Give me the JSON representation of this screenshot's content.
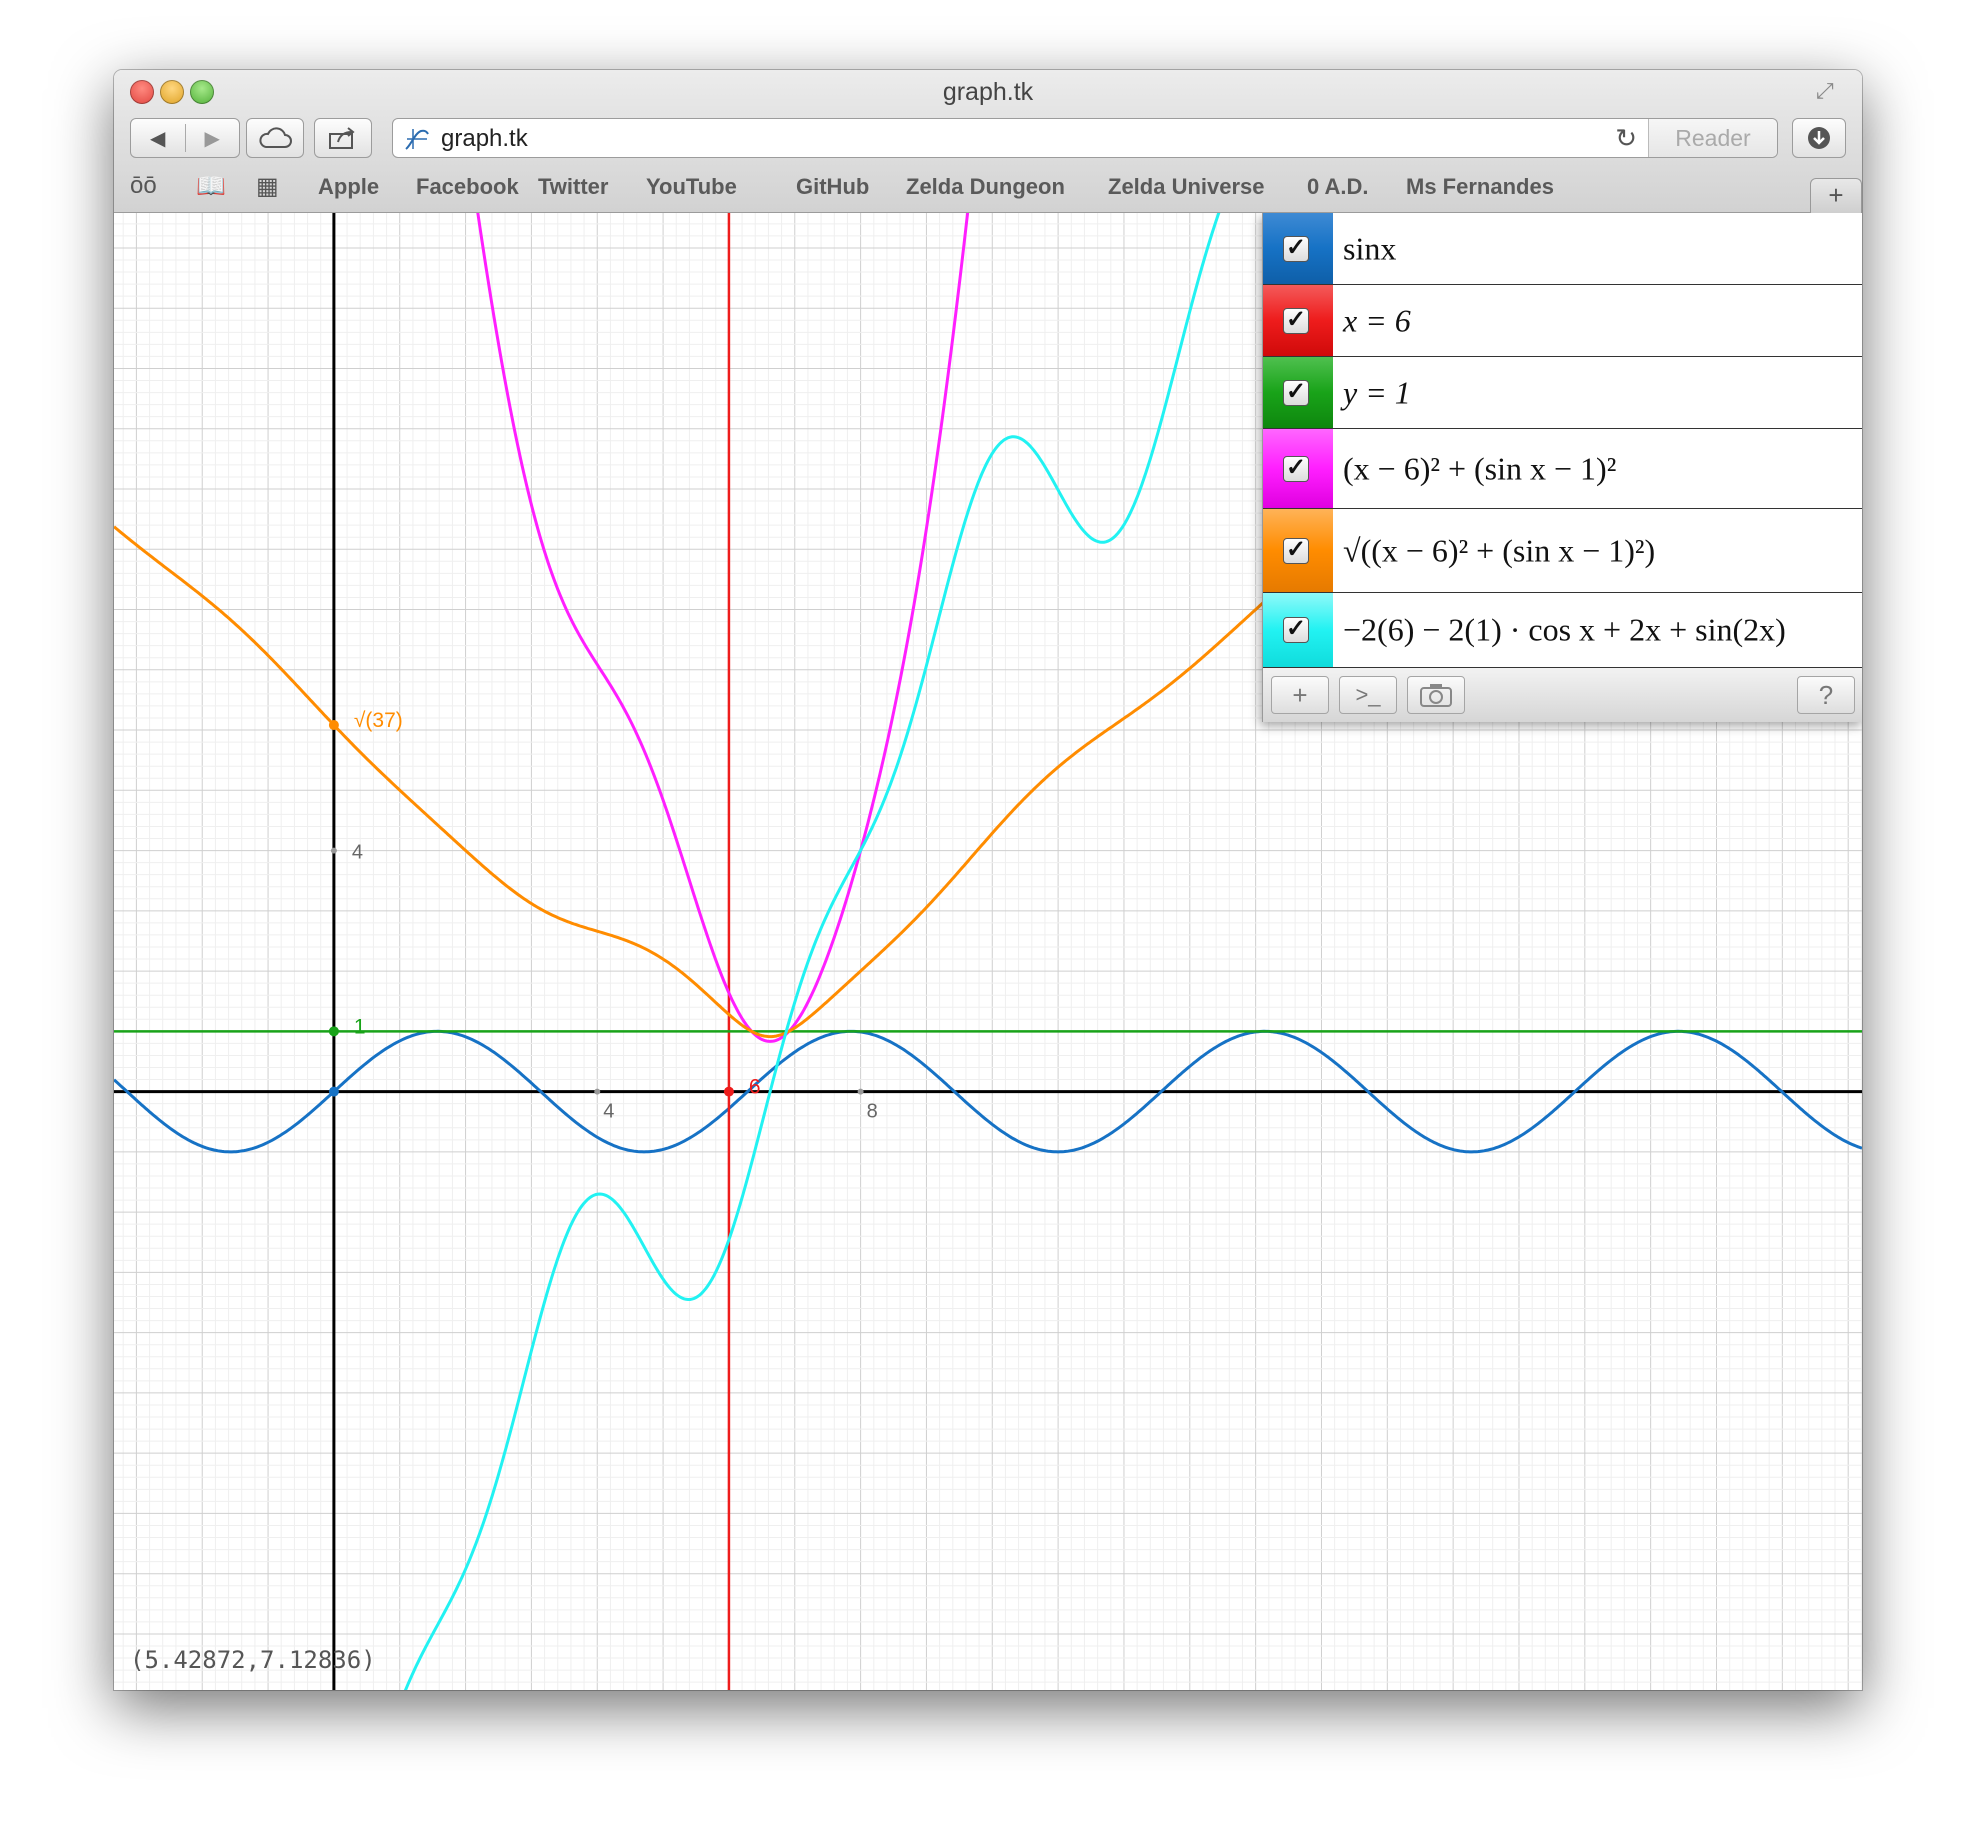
{
  "window": {
    "title": "graph.tk"
  },
  "toolbar": {
    "url": "graph.tk",
    "reader_label": "Reader"
  },
  "bookmarks": [
    "Apple",
    "Facebook",
    "Twitter",
    "YouTube",
    "GitHub",
    "Zelda Dungeon",
    "Zelda Universe",
    "0 A.D.",
    "Ms Fernandes"
  ],
  "bookmark_add": "+",
  "equations": [
    {
      "label": "sinx",
      "color": "#1672c5",
      "checked": true
    },
    {
      "label": "x = 6",
      "color": "#ee1c1c",
      "checked": true
    },
    {
      "label": "y = 1",
      "color": "#19a319",
      "checked": true
    },
    {
      "label": "(x − 6)² + (sin x − 1)²",
      "color": "#ff1fff",
      "checked": true
    },
    {
      "label": "√((x − 6)² + (sin x − 1)²)",
      "color": "#ff8c00",
      "checked": true
    },
    {
      "label": "−2(6) − 2(1) · cos x + 2x + sin(2x)",
      "color": "#22f2f2",
      "checked": true
    }
  ],
  "panel_buttons": {
    "add": "+",
    "console": ">_",
    "camera": "camera-icon",
    "help": "?"
  },
  "cursor_readout": "(5.42872,7.12836)",
  "chart_data": {
    "type": "line",
    "xlim": [
      -3.34,
      23.21
    ],
    "ylim": [
      -9.93,
      14.58
    ],
    "grid": true,
    "x_ticks": [
      "4",
      "8"
    ],
    "y_ticks": [
      "4"
    ],
    "series": [
      {
        "name": "sinx",
        "expr": "sin(x)",
        "color": "#1672c5"
      },
      {
        "name": "x=6",
        "expr": "x = 6",
        "color": "#ee1c1c"
      },
      {
        "name": "y=1",
        "expr": "y = 1",
        "color": "#19a319"
      },
      {
        "name": "(x-6)^2+(sinx-1)^2",
        "expr": "(x-6)^2+(sin(x)-1)^2",
        "color": "#ff1fff"
      },
      {
        "name": "sqrt((x-6)^2+(sinx-1)^2)",
        "expr": "sqrt((x-6)^2+(sin(x)-1)^2)",
        "color": "#ff8c00"
      },
      {
        "name": "-2(6)-2(1)cosx+2x+sin(2x)",
        "expr": "-12-2*cos(x)+2*x+sin(2*x)",
        "color": "#22f2f2"
      }
    ],
    "points": [
      {
        "label": "√(37)",
        "x": 0,
        "y": 6.08276,
        "color": "#ff8c00"
      },
      {
        "label": "1",
        "x": 0,
        "y": 1,
        "color": "#19a319"
      },
      {
        "label": "6",
        "x": 6,
        "y": 0,
        "color": "#ee1c1c"
      },
      {
        "label": "",
        "x": 0,
        "y": 0,
        "color": "#1672c5"
      }
    ]
  }
}
